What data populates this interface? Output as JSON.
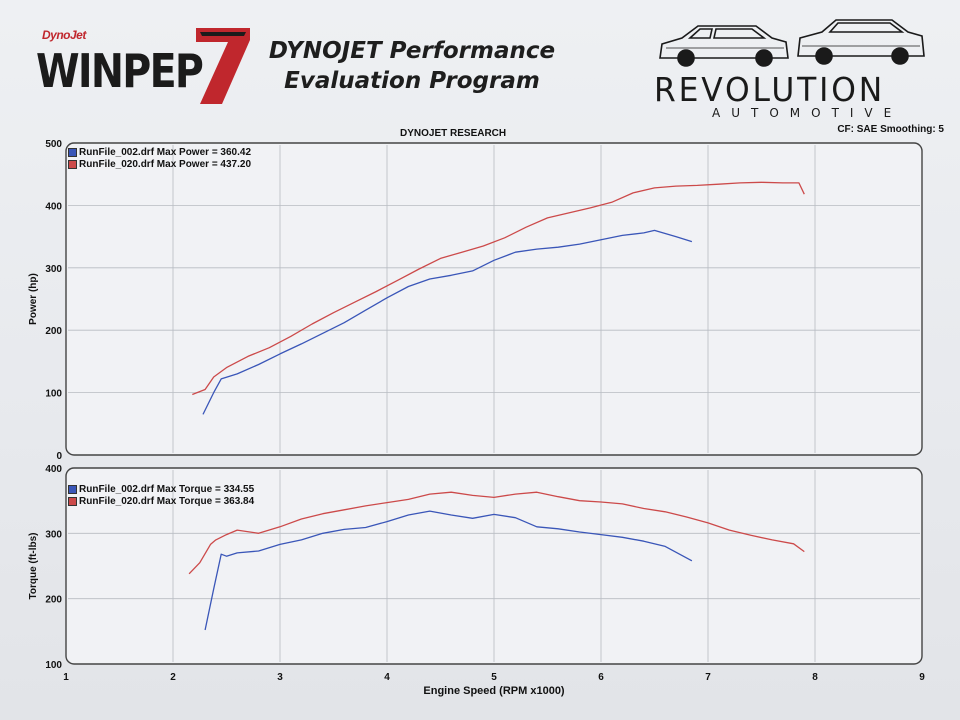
{
  "header": {
    "logo_brand": "DynoJet",
    "logo_main": "WINPEP",
    "logo_num": "7",
    "title_line1": "DYNOJET Performance",
    "title_line2": "Evaluation Program",
    "rev_name": "REVOLUTION",
    "rev_sub": "AUTOMOTIVE"
  },
  "chart_header": {
    "title": "DYNOJET RESEARCH",
    "cf": "CF: SAE  Smoothing: 5"
  },
  "colors": {
    "run002": "#3a56b8",
    "run020": "#cc4a4a",
    "grid": "#b8bbc2",
    "frame": "#444444"
  },
  "chart_data": [
    {
      "type": "line",
      "ylabel": "Power (hp)",
      "ylim": [
        0,
        500
      ],
      "xlim": [
        1,
        9
      ],
      "yticks": [
        0,
        100,
        200,
        300,
        400,
        500
      ],
      "legend_placement": "top-left",
      "series": [
        {
          "name": "RunFile_002.drf Max Power = 360.42",
          "x": [
            2.28,
            2.38,
            2.45,
            2.6,
            2.8,
            3.0,
            3.2,
            3.4,
            3.6,
            3.8,
            4.0,
            4.2,
            4.4,
            4.6,
            4.8,
            5.0,
            5.2,
            5.4,
            5.6,
            5.8,
            6.0,
            6.2,
            6.4,
            6.5,
            6.6,
            6.7,
            6.85
          ],
          "y": [
            65,
            100,
            122,
            130,
            145,
            162,
            178,
            195,
            212,
            232,
            252,
            270,
            282,
            288,
            295,
            312,
            325,
            330,
            333,
            338,
            345,
            352,
            356,
            360,
            355,
            350,
            342
          ]
        },
        {
          "name": "RunFile_020.drf Max Power = 437.20",
          "x": [
            2.18,
            2.3,
            2.38,
            2.5,
            2.7,
            2.9,
            3.1,
            3.3,
            3.5,
            3.7,
            3.9,
            4.1,
            4.3,
            4.5,
            4.7,
            4.9,
            5.1,
            5.3,
            5.5,
            5.7,
            5.9,
            6.1,
            6.3,
            6.5,
            6.7,
            6.9,
            7.1,
            7.3,
            7.5,
            7.7,
            7.85,
            7.9
          ],
          "y": [
            97,
            105,
            125,
            140,
            158,
            172,
            190,
            210,
            228,
            245,
            262,
            280,
            298,
            315,
            325,
            335,
            348,
            365,
            380,
            388,
            396,
            405,
            420,
            428,
            431,
            432,
            434,
            436,
            437,
            436,
            436,
            418
          ]
        }
      ]
    },
    {
      "type": "line",
      "xlabel": "Engine Speed (RPM x1000)",
      "ylabel": "Torque (ft-lbs)",
      "ylim": [
        100,
        400
      ],
      "xlim": [
        1,
        9
      ],
      "yticks": [
        100,
        200,
        300,
        400
      ],
      "xticks": [
        1,
        2,
        3,
        4,
        5,
        6,
        7,
        8,
        9
      ],
      "legend_placement": "top-left",
      "series": [
        {
          "name": "RunFile_002.drf Max Torque = 334.55",
          "x": [
            2.3,
            2.38,
            2.45,
            2.5,
            2.6,
            2.8,
            3.0,
            3.2,
            3.4,
            3.6,
            3.8,
            4.0,
            4.2,
            4.4,
            4.6,
            4.8,
            5.0,
            5.2,
            5.4,
            5.6,
            5.8,
            6.0,
            6.2,
            6.4,
            6.6,
            6.85
          ],
          "y": [
            152,
            215,
            268,
            265,
            270,
            273,
            283,
            290,
            300,
            306,
            309,
            318,
            328,
            334,
            328,
            323,
            329,
            324,
            310,
            307,
            302,
            298,
            294,
            288,
            280,
            258
          ]
        },
        {
          "name": "RunFile_020.drf Max Torque = 363.84",
          "x": [
            2.15,
            2.25,
            2.35,
            2.4,
            2.5,
            2.6,
            2.8,
            3.0,
            3.2,
            3.4,
            3.6,
            3.8,
            4.0,
            4.2,
            4.4,
            4.6,
            4.8,
            5.0,
            5.2,
            5.4,
            5.6,
            5.8,
            6.0,
            6.2,
            6.4,
            6.6,
            6.8,
            7.0,
            7.2,
            7.4,
            7.6,
            7.8,
            7.9
          ],
          "y": [
            238,
            255,
            283,
            290,
            298,
            305,
            300,
            310,
            322,
            330,
            336,
            342,
            347,
            352,
            360,
            363,
            358,
            355,
            360,
            363,
            356,
            350,
            348,
            345,
            338,
            333,
            325,
            316,
            305,
            297,
            290,
            284,
            272
          ]
        }
      ]
    }
  ]
}
